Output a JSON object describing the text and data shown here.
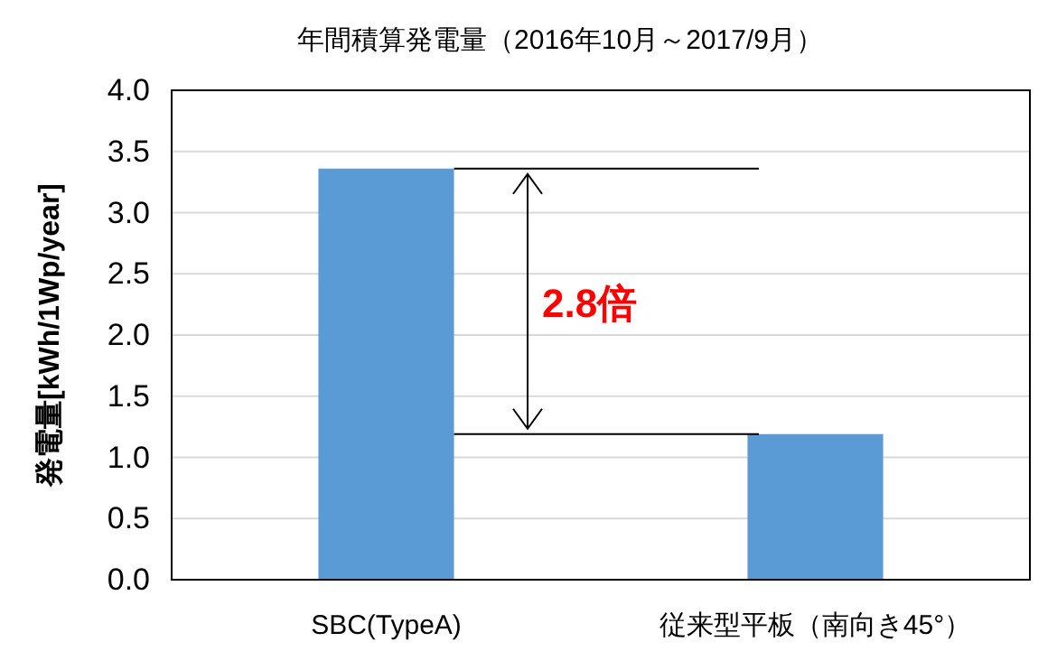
{
  "chart_data": {
    "type": "bar",
    "title": "年間積算発電量（2016年10月～2017/9月）",
    "ylabel": "発電量[kWh/1Wp/year]",
    "categories": [
      "SBC(TypeA)",
      "従来型平板（南向き45°）"
    ],
    "values": [
      3.36,
      1.19
    ],
    "color": "#5b9bd5",
    "ylim": [
      0,
      4
    ],
    "yticks": [
      {
        "value": 0,
        "label": "0.0"
      },
      {
        "value": 0.5,
        "label": "0.5"
      },
      {
        "value": 1,
        "label": "1.0"
      },
      {
        "value": 1.5,
        "label": "1.5"
      },
      {
        "value": 2,
        "label": "2.0"
      },
      {
        "value": 2.5,
        "label": "2.5"
      },
      {
        "value": 3,
        "label": "3.0"
      },
      {
        "value": 3.5,
        "label": "3.5"
      },
      {
        "value": 4,
        "label": "4.0"
      }
    ],
    "grid": "y",
    "annotations": [
      "2.8倍"
    ]
  }
}
